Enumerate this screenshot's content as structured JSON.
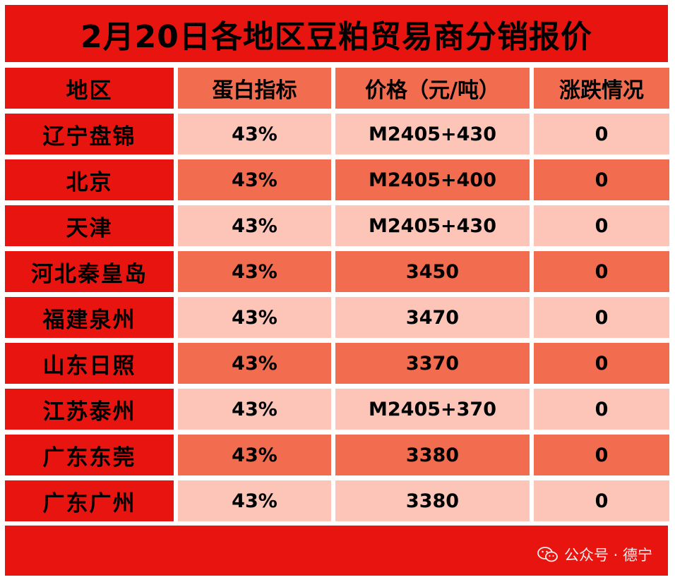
{
  "title": "2月20日各地区豆粕贸易商分销报价",
  "headers": [
    "地区",
    "蛋白指标",
    "价格（元/吨）",
    "涨跌情况"
  ],
  "rows": [
    {
      "region": "辽宁盘锦",
      "protein": "43%",
      "price": "M2405+430",
      "change": "0"
    },
    {
      "region": "北京",
      "protein": "43%",
      "price": "M2405+400",
      "change": "0"
    },
    {
      "region": "天津",
      "protein": "43%",
      "price": "M2405+430",
      "change": "0"
    },
    {
      "region": "河北秦皇岛",
      "protein": "43%",
      "price": "3450",
      "change": "0"
    },
    {
      "region": "福建泉州",
      "protein": "43%",
      "price": "3470",
      "change": "0"
    },
    {
      "region": "山东日照",
      "protein": "43%",
      "price": "3370",
      "change": "0"
    },
    {
      "region": "江苏泰州",
      "protein": "43%",
      "price": "M2405+370",
      "change": "0"
    },
    {
      "region": "广东东莞",
      "protein": "43%",
      "price": "3380",
      "change": "0"
    },
    {
      "region": "广东广州",
      "protein": "43%",
      "price": "3380",
      "change": "0"
    }
  ],
  "watermark": {
    "icon": "wechat-icon",
    "text": "公众号 · 德宁"
  },
  "colors": {
    "red": "#e8140f",
    "dark_salmon": "#f26c4f",
    "light_salmon": "#fcc5b8"
  }
}
